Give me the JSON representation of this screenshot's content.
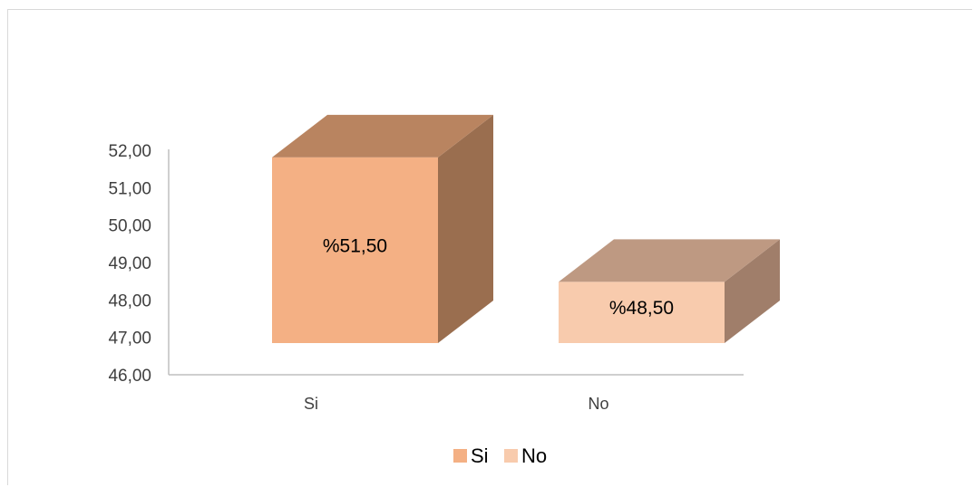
{
  "chart_data": {
    "type": "bar",
    "style": "3d-column",
    "categories": [
      "Si",
      "No"
    ],
    "values": [
      51.5,
      48.5
    ],
    "data_labels": [
      "%51,50",
      "%48,50"
    ],
    "yticks": [
      "46,00",
      "47,00",
      "48,00",
      "49,00",
      "50,00",
      "51,00",
      "52,00"
    ],
    "ylim": [
      46,
      52
    ],
    "grid": false,
    "legend": {
      "position": "bottom",
      "entries": [
        "Si",
        "No"
      ]
    },
    "colors": {
      "Si": {
        "front": "#f4b084",
        "top": "#b98460",
        "side": "#9a6e4f"
      },
      "No": {
        "front": "#f8cbad",
        "top": "#be9982",
        "side": "#a07e6a"
      }
    }
  }
}
